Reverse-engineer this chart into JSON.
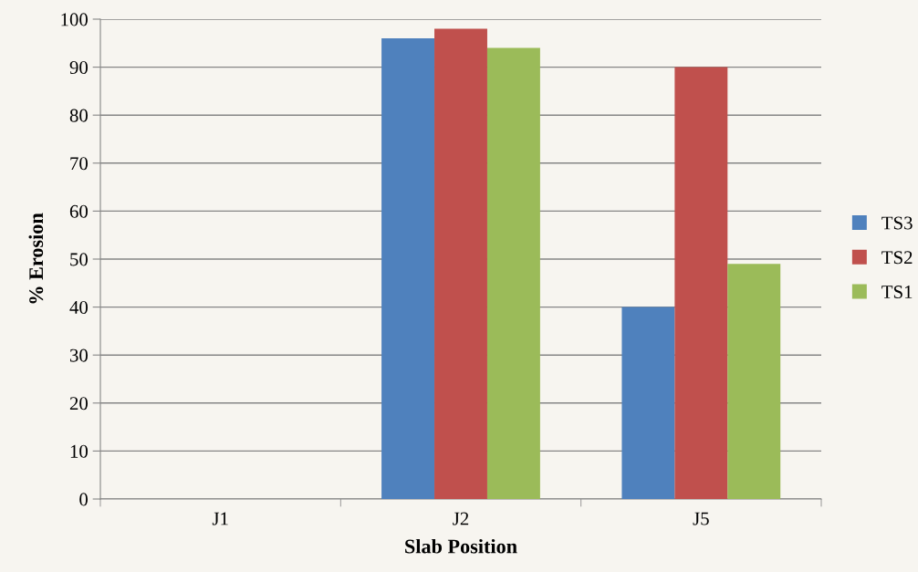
{
  "chart_data": {
    "type": "bar",
    "xlabel": "Slab Position",
    "ylabel": "% Erosion",
    "categories": [
      "J1",
      "J2",
      "J5"
    ],
    "series": [
      {
        "name": "TS3",
        "color": "#4f81bd",
        "values": [
          0,
          96,
          40
        ]
      },
      {
        "name": "TS2",
        "color": "#c0504d",
        "values": [
          0,
          98,
          90
        ]
      },
      {
        "name": "TS1",
        "color": "#9bbb59",
        "values": [
          0,
          94,
          49
        ]
      }
    ],
    "ylim": [
      0,
      100
    ],
    "yticks": [
      0,
      10,
      20,
      30,
      40,
      50,
      60,
      70,
      80,
      90,
      100
    ],
    "grid": "y",
    "legend": "right"
  }
}
